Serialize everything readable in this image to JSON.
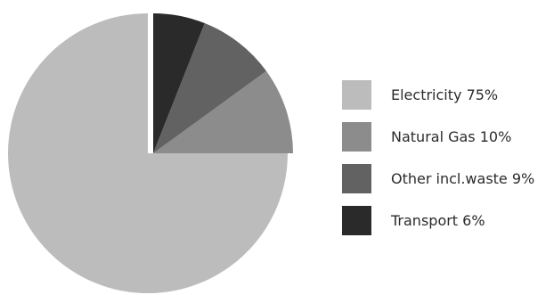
{
  "chart_data": {
    "type": "pie",
    "title": "",
    "slices": [
      {
        "label": "Electricity 75%",
        "value": 75,
        "color": "#bcbcbc",
        "exploded": false
      },
      {
        "label": "Natural Gas 10%",
        "value": 10,
        "color": "#8c8c8c",
        "exploded": true
      },
      {
        "label": "Other incl.waste 9%",
        "value": 9,
        "color": "#626262",
        "exploded": true
      },
      {
        "label": "Transport 6%",
        "value": 6,
        "color": "#2a2a2a",
        "exploded": true
      }
    ],
    "start_angle": "12 o'clock",
    "direction": "clockwise order: Transport, Other incl.waste, Natural Gas, Electricity",
    "legend_position": "right"
  }
}
